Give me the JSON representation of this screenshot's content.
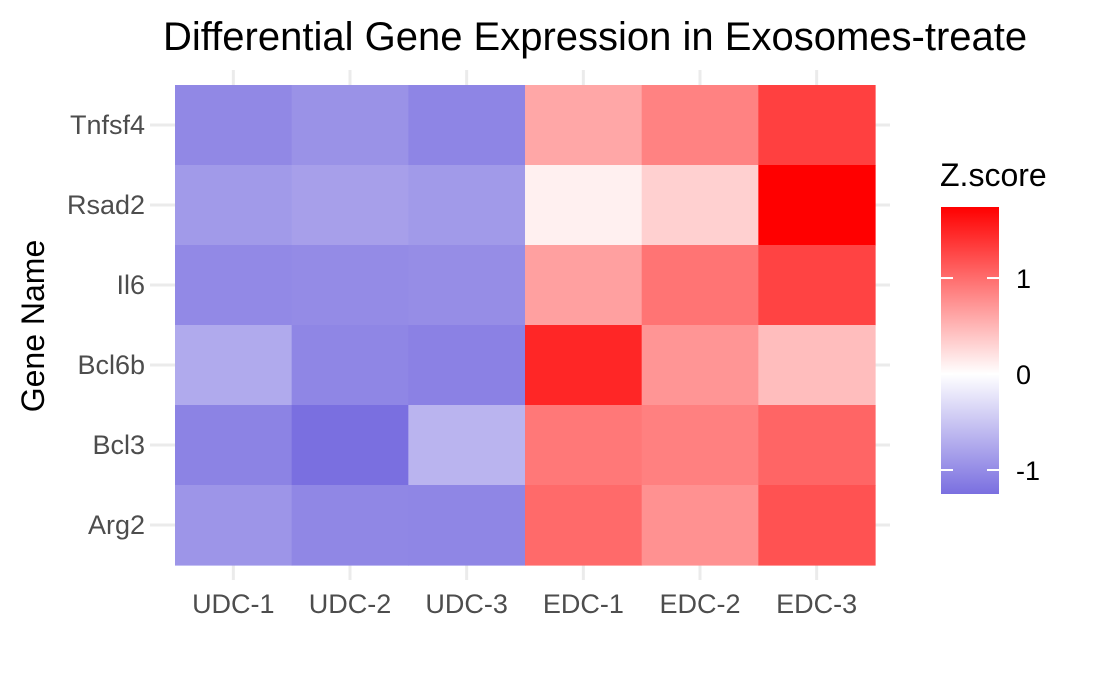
{
  "chart_data": {
    "type": "heatmap",
    "title": "Differential Gene Expression in Exosomes-treate",
    "xlabel": "",
    "ylabel": "Gene Name",
    "x": [
      "UDC-1",
      "UDC-2",
      "UDC-3",
      "EDC-1",
      "EDC-2",
      "EDC-3"
    ],
    "y": [
      "Tnfsf4",
      "Rsad2",
      "Il6",
      "Bcl6b",
      "Bcl3",
      "Arg2"
    ],
    "values": [
      [
        -1.03,
        -0.95,
        -1.06,
        0.6,
        0.85,
        1.3
      ],
      [
        -0.88,
        -0.83,
        -0.88,
        0.1,
        0.32,
        1.74
      ],
      [
        -1.02,
        -1.01,
        -0.99,
        0.65,
        0.95,
        1.28
      ],
      [
        -0.74,
        -1.05,
        -1.09,
        1.48,
        0.72,
        0.45
      ],
      [
        -1.08,
        -1.25,
        -0.65,
        0.92,
        0.87,
        1.05
      ],
      [
        -0.92,
        -1.04,
        -1.05,
        1.02,
        0.75,
        1.18
      ]
    ],
    "legend": {
      "title": "Z.score",
      "ticks": [
        -1,
        0,
        1
      ],
      "range": [
        -1.25,
        1.74
      ],
      "placement": "right"
    },
    "colors": {
      "low": "#7A6FE0",
      "mid": "#FFFFFF",
      "high": "#FF0000"
    },
    "grid": true
  }
}
